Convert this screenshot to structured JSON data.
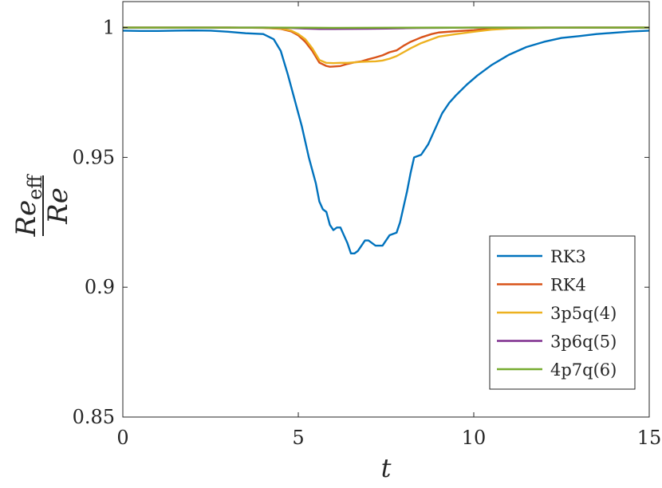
{
  "chart_data": {
    "type": "line",
    "xlabel": "t",
    "ylabel": {
      "numerator": "Re",
      "numerator_sub": "eff",
      "denominator": "Re"
    },
    "xlim": [
      0,
      15
    ],
    "ylim": [
      0.85,
      1.01
    ],
    "xticks": [
      0,
      5,
      10,
      15
    ],
    "yticks": [
      0.85,
      0.9,
      0.95,
      1
    ],
    "grid": false,
    "legend_position": "bottom-right",
    "series": [
      {
        "name": "RK3",
        "color": "#0072BD",
        "x": [
          0,
          0.5,
          1,
          1.5,
          2,
          2.5,
          3,
          3.5,
          4,
          4.3,
          4.5,
          4.7,
          4.9,
          5.1,
          5.3,
          5.5,
          5.6,
          5.7,
          5.8,
          5.9,
          6.0,
          6.1,
          6.2,
          6.3,
          6.4,
          6.5,
          6.6,
          6.7,
          6.8,
          6.9,
          7.0,
          7.2,
          7.4,
          7.6,
          7.8,
          7.9,
          8.0,
          8.1,
          8.2,
          8.3,
          8.5,
          8.7,
          8.9,
          9.1,
          9.3,
          9.5,
          9.8,
          10.1,
          10.5,
          11.0,
          11.5,
          12.0,
          12.5,
          13.0,
          13.5,
          14.0,
          14.5,
          15.0
        ],
        "values": [
          0.9988,
          0.9987,
          0.9987,
          0.9988,
          0.9989,
          0.9988,
          0.9984,
          0.9978,
          0.9975,
          0.9955,
          0.991,
          0.982,
          0.972,
          0.962,
          0.95,
          0.94,
          0.933,
          0.93,
          0.929,
          0.924,
          0.922,
          0.923,
          0.923,
          0.92,
          0.917,
          0.913,
          0.913,
          0.914,
          0.916,
          0.918,
          0.918,
          0.916,
          0.916,
          0.92,
          0.921,
          0.925,
          0.931,
          0.937,
          0.944,
          0.95,
          0.951,
          0.955,
          0.961,
          0.967,
          0.971,
          0.974,
          0.978,
          0.9815,
          0.9855,
          0.9895,
          0.9925,
          0.9945,
          0.996,
          0.9967,
          0.9975,
          0.998,
          0.9985,
          0.9988
        ]
      },
      {
        "name": "RK4",
        "color": "#D95319",
        "x": [
          0,
          1,
          2,
          3,
          4,
          4.5,
          4.8,
          5.0,
          5.2,
          5.4,
          5.6,
          5.8,
          5.9,
          6.0,
          6.2,
          6.4,
          6.6,
          6.8,
          7.0,
          7.2,
          7.4,
          7.6,
          7.8,
          8.0,
          8.2,
          8.5,
          8.8,
          9.0,
          9.5,
          10.0,
          10.5,
          11.0,
          12.0,
          13.0,
          14.0,
          15.0
        ],
        "values": [
          1.0,
          1.0,
          1.0,
          1.0,
          0.9999,
          0.9995,
          0.9985,
          0.997,
          0.9945,
          0.991,
          0.9865,
          0.9852,
          0.9849,
          0.985,
          0.9852,
          0.986,
          0.9866,
          0.987,
          0.9878,
          0.9885,
          0.9893,
          0.9905,
          0.9912,
          0.993,
          0.9945,
          0.9962,
          0.9975,
          0.9981,
          0.9986,
          0.999,
          0.9996,
          0.9998,
          1.0,
          1.0,
          1.0,
          1.0
        ]
      },
      {
        "name": "3p5q(4)",
        "color": "#EDB120",
        "x": [
          0,
          1,
          2,
          3,
          4,
          4.5,
          4.8,
          5.0,
          5.2,
          5.4,
          5.6,
          5.8,
          6.0,
          6.2,
          6.4,
          6.6,
          6.8,
          7.0,
          7.2,
          7.4,
          7.6,
          7.8,
          8.0,
          8.2,
          8.5,
          8.8,
          9.0,
          9.5,
          10.0,
          10.5,
          11.0,
          12.0,
          13.0,
          14.0,
          15.0
        ],
        "values": [
          1.0,
          1.0,
          1.0,
          1.0,
          0.9999,
          0.9996,
          0.9988,
          0.9975,
          0.9955,
          0.992,
          0.9875,
          0.9864,
          0.9863,
          0.9864,
          0.9864,
          0.9866,
          0.9868,
          0.9869,
          0.987,
          0.9873,
          0.988,
          0.989,
          0.9905,
          0.992,
          0.994,
          0.9955,
          0.9965,
          0.9975,
          0.9984,
          0.9992,
          0.9996,
          0.9999,
          1.0,
          1.0,
          1.0
        ]
      },
      {
        "name": "3p6q(5)",
        "color": "#7E2F8E",
        "x": [
          0,
          2,
          4,
          4.8,
          5.2,
          5.6,
          6.0,
          6.5,
          7.0,
          7.5,
          8.0,
          8.5,
          9.0,
          10,
          12,
          15
        ],
        "values": [
          1.0,
          1.0,
          1.0,
          0.99985,
          0.9996,
          0.99945,
          0.99945,
          0.9995,
          0.99955,
          0.9996,
          0.99975,
          0.99985,
          0.9999,
          1.0,
          1.0,
          1.0
        ]
      },
      {
        "name": "4p7q(6)",
        "color": "#77AC30",
        "x": [
          0,
          2,
          4,
          5,
          6,
          7,
          8,
          9,
          10,
          12,
          15
        ],
        "values": [
          1.0,
          1.0,
          1.0,
          0.99995,
          0.9999,
          0.99992,
          0.99995,
          0.99998,
          1.0,
          1.0,
          1.0
        ]
      }
    ]
  }
}
